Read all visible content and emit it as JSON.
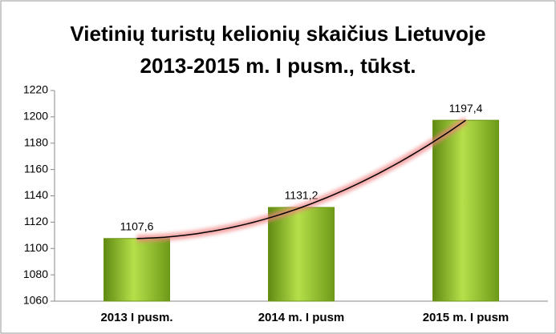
{
  "chart_data": {
    "type": "bar",
    "title": "Vietinių turistų kelionių skaičius Lietuvoje 2013-2015 m. I pusm., tūkst.",
    "categories": [
      "2013 I pusm.",
      "2014 m. I pusm",
      "2015 m. I pusm"
    ],
    "values": [
      1107.6,
      1131.2,
      1197.4
    ],
    "value_labels": [
      "1107,6",
      "1131,2",
      "1197,4"
    ],
    "color": "#8fc02d",
    "ylim": [
      1060,
      1220
    ],
    "yticks": [
      1060,
      1080,
      1100,
      1120,
      1140,
      1160,
      1180,
      1200,
      1220
    ],
    "grid": false,
    "trendline": true
  }
}
